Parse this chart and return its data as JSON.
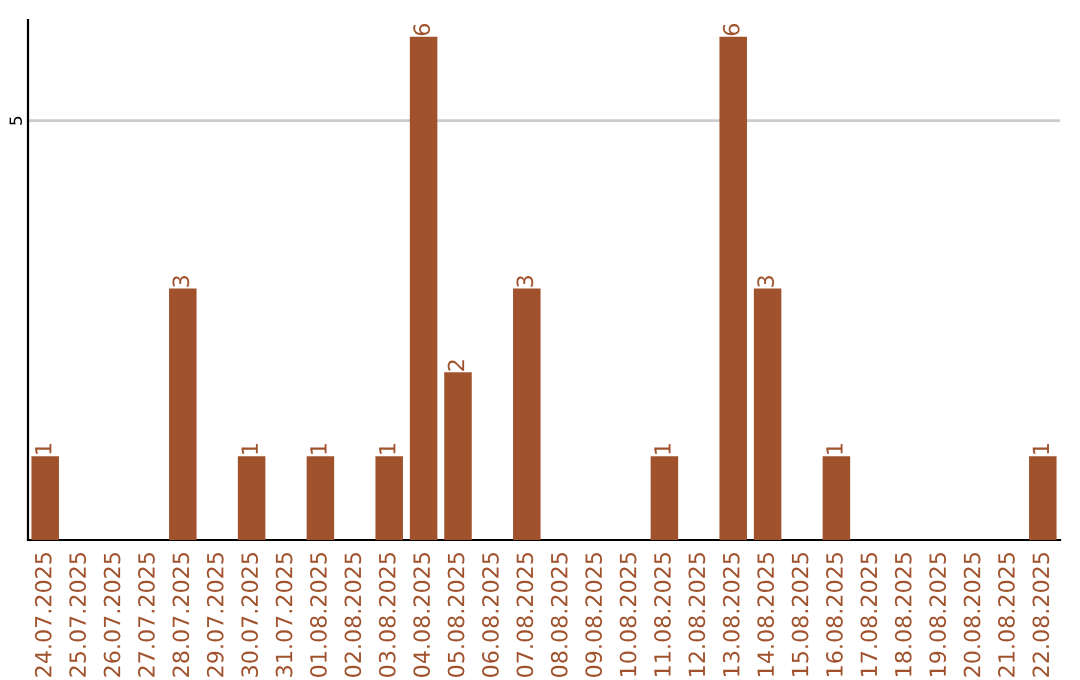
{
  "chart_data": {
    "type": "bar",
    "categories": [
      "24.07.2025",
      "25.07.2025",
      "26.07.2025",
      "27.07.2025",
      "28.07.2025",
      "29.07.2025",
      "30.07.2025",
      "31.07.2025",
      "01.08.2025",
      "02.08.2025",
      "03.08.2025",
      "04.08.2025",
      "05.08.2025",
      "06.08.2025",
      "07.08.2025",
      "08.08.2025",
      "09.08.2025",
      "10.08.2025",
      "11.08.2025",
      "12.08.2025",
      "13.08.2025",
      "14.08.2025",
      "15.08.2025",
      "16.08.2025",
      "17.08.2025",
      "18.08.2025",
      "19.08.2025",
      "20.08.2025",
      "21.08.2025",
      "22.08.2025"
    ],
    "values": [
      1,
      0,
      0,
      0,
      3,
      0,
      1,
      0,
      1,
      0,
      1,
      6,
      2,
      0,
      3,
      0,
      0,
      0,
      1,
      0,
      6,
      3,
      0,
      1,
      0,
      0,
      0,
      0,
      0,
      1
    ],
    "value_labels": [
      "1",
      null,
      null,
      null,
      "3",
      null,
      "1",
      null,
      "1",
      null,
      "1",
      "6",
      "2",
      null,
      "3",
      null,
      null,
      null,
      "1",
      null,
      "6",
      "3",
      null,
      "1",
      null,
      null,
      null,
      null,
      null,
      "1"
    ],
    "color": "#a0522d",
    "ylim": [
      0,
      6.2
    ],
    "yticks": [
      5
    ],
    "grid": "y"
  }
}
